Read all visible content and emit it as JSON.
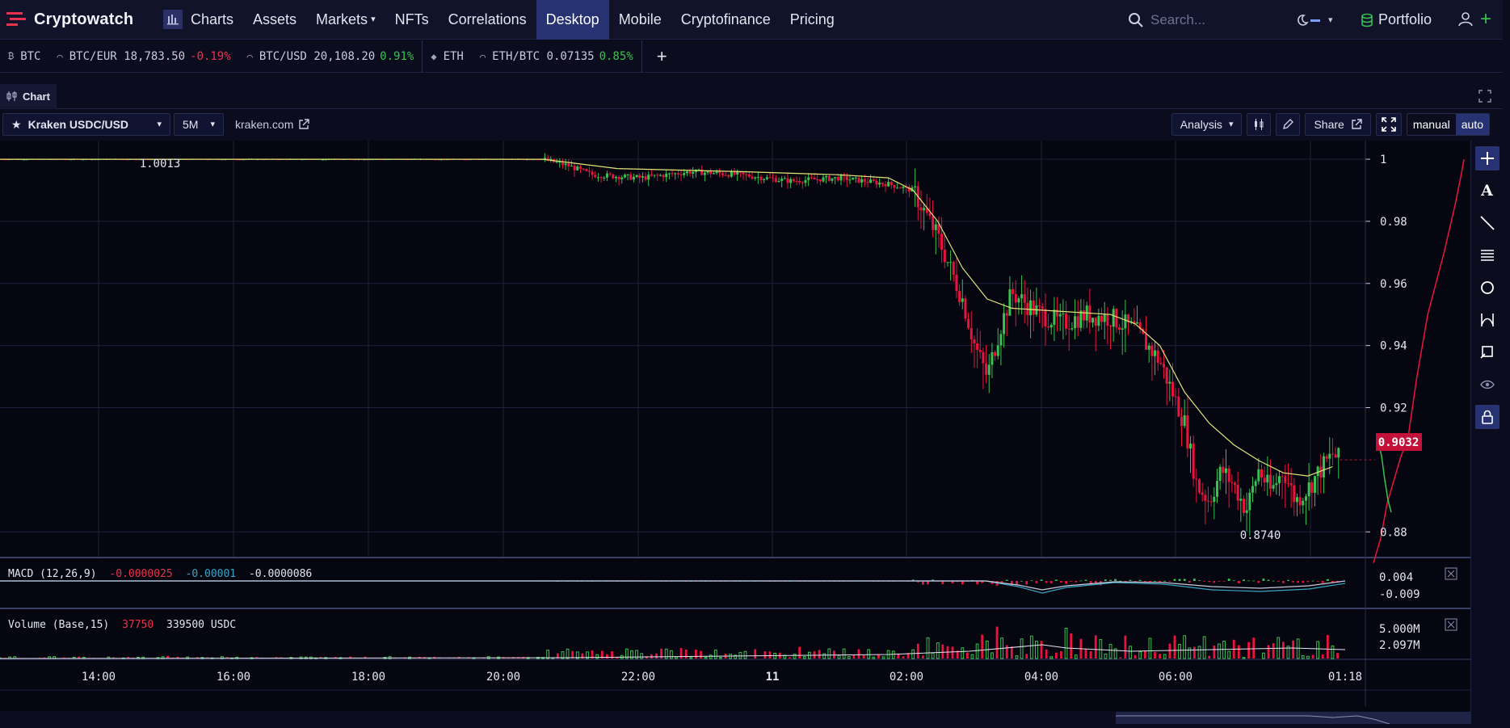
{
  "app": {
    "brand": "Cryptowatch",
    "nav": [
      {
        "label": "Charts",
        "active": false
      },
      {
        "label": "Assets",
        "active": false
      },
      {
        "label": "Markets",
        "active": false
      },
      {
        "label": "NFTs",
        "active": false
      },
      {
        "label": "Correlations",
        "active": false
      },
      {
        "label": "Desktop",
        "active": true
      },
      {
        "label": "Mobile",
        "active": false
      },
      {
        "label": "Cryptofinance",
        "active": false
      },
      {
        "label": "Pricing",
        "active": false
      }
    ],
    "search_placeholder": "Search...",
    "portfolio_label": "Portfolio"
  },
  "tickers": [
    {
      "symbol": "BTC",
      "price": "",
      "change": "",
      "dir": ""
    },
    {
      "symbol": "BTC/EUR",
      "price": "18,783.50",
      "change": "-0.19%",
      "dir": "neg"
    },
    {
      "symbol": "BTC/USD",
      "price": "20,108.20",
      "change": "0.91%",
      "dir": "pos"
    },
    {
      "symbol": "ETH",
      "price": "",
      "change": "",
      "dir": ""
    },
    {
      "symbol": "ETH/BTC",
      "price": "0.07135",
      "change": "0.85%",
      "dir": "pos"
    }
  ],
  "panel": {
    "tab_label": "Chart",
    "market_label": "Kraken USDC/USD",
    "interval": "5M",
    "exchange_link": "kraken.com",
    "analysis_label": "Analysis",
    "share_label": "Share",
    "mode_manual": "manual",
    "mode_auto": "auto"
  },
  "chart_data": {
    "type": "candlestick",
    "market": "USDC/USD",
    "x_ticks": [
      "14:00",
      "16:00",
      "18:00",
      "20:00",
      "22:00",
      "11",
      "02:00",
      "04:00",
      "06:00",
      "01:18"
    ],
    "y_ticks": [
      1,
      0.98,
      0.96,
      0.94,
      0.92,
      0.88
    ],
    "ylim": [
      0.872,
      1.006
    ],
    "high_label": "1.0013",
    "low_label": "0.8740",
    "last_price": "0.9032",
    "price_path": [
      [
        0,
        1.0
      ],
      [
        22,
        1.0
      ],
      [
        23,
        0.998
      ],
      [
        24,
        0.995
      ],
      [
        26,
        0.994
      ],
      [
        28,
        0.996
      ],
      [
        30,
        0.995
      ],
      [
        32,
        0.993
      ],
      [
        34,
        0.994
      ],
      [
        36,
        0.992
      ],
      [
        37,
        0.99
      ],
      [
        38,
        0.975
      ],
      [
        39,
        0.955
      ],
      [
        39.5,
        0.94
      ],
      [
        40,
        0.93
      ],
      [
        40.5,
        0.945
      ],
      [
        41,
        0.957
      ],
      [
        42,
        0.951
      ],
      [
        43,
        0.947
      ],
      [
        44,
        0.95
      ],
      [
        45,
        0.949
      ],
      [
        46,
        0.945
      ],
      [
        47,
        0.935
      ],
      [
        48,
        0.915
      ],
      [
        48.5,
        0.895
      ],
      [
        49,
        0.89
      ],
      [
        49.5,
        0.9
      ],
      [
        50,
        0.895
      ],
      [
        50.5,
        0.887
      ],
      [
        51,
        0.9
      ],
      [
        51.5,
        0.893
      ],
      [
        52,
        0.9
      ],
      [
        52.5,
        0.89
      ],
      [
        53,
        0.894
      ],
      [
        53.5,
        0.9
      ],
      [
        54,
        0.905
      ],
      [
        54.3,
        0.9032
      ]
    ],
    "ma_path": [
      [
        0,
        1.0
      ],
      [
        22,
        1.0
      ],
      [
        25,
        0.997
      ],
      [
        30,
        0.996
      ],
      [
        34,
        0.995
      ],
      [
        36,
        0.994
      ],
      [
        37,
        0.99
      ],
      [
        38,
        0.98
      ],
      [
        39,
        0.965
      ],
      [
        40,
        0.955
      ],
      [
        41,
        0.952
      ],
      [
        43,
        0.951
      ],
      [
        45,
        0.95
      ],
      [
        46,
        0.947
      ],
      [
        47,
        0.94
      ],
      [
        48,
        0.925
      ],
      [
        49,
        0.915
      ],
      [
        50,
        0.908
      ],
      [
        51,
        0.903
      ],
      [
        52,
        0.899
      ],
      [
        53,
        0.898
      ],
      [
        54,
        0.901
      ]
    ],
    "depth_path": [
      [
        0.87,
        1
      ],
      [
        0.878,
        0.92
      ],
      [
        0.889,
        0.85
      ],
      [
        0.9,
        0.74
      ],
      [
        0.904,
        0.7
      ],
      [
        0.91,
        0.62
      ],
      [
        0.93,
        0.52
      ],
      [
        0.95,
        0.4
      ],
      [
        0.97,
        0.22
      ],
      [
        0.985,
        0.1
      ],
      [
        0.995,
        0.03
      ],
      [
        1.0,
        0.0
      ]
    ],
    "macd": {
      "label": "MACD (12,26,9)",
      "v1": "-0.0000025",
      "v2": "-0.00001",
      "v3": "-0.0000086",
      "tick_top": "0.004",
      "tick_bottom": "-0.009"
    },
    "volume": {
      "label": "Volume (Base,15)",
      "v1": "37750",
      "v2": "339500 USDC",
      "tick_top": "5.000M",
      "tick_bottom": "2.097M"
    },
    "colors": {
      "up": "#39c24f",
      "down": "#e8143f",
      "ma": "#e3e57a",
      "grid": "#1d2138",
      "bg": "#05060f"
    }
  }
}
